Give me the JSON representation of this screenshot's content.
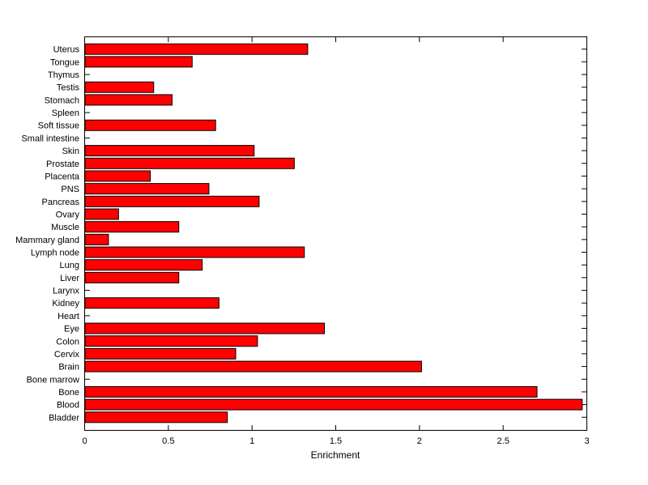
{
  "figure": {
    "background_color": "#ffffff",
    "axis_color": "#000000",
    "text_color": "#000000"
  },
  "chart_data": {
    "type": "bar",
    "orientation": "horizontal",
    "title": "",
    "xlabel": "Enrichment",
    "ylabel": "",
    "xlim": [
      0,
      3
    ],
    "xticks": [
      0,
      0.5,
      1,
      1.5,
      2,
      2.5,
      3
    ],
    "xtick_labels": [
      "0",
      "0.5",
      "1",
      "1.5",
      "2",
      "2.5",
      "3"
    ],
    "grid": false,
    "legend": null,
    "bar_fill_color": "#ff0000",
    "bar_border_color": "#000000",
    "categories": [
      "Uterus",
      "Tongue",
      "Thymus",
      "Testis",
      "Stomach",
      "Spleen",
      "Soft tissue",
      "Small intestine",
      "Skin",
      "Prostate",
      "Placenta",
      "PNS",
      "Pancreas",
      "Ovary",
      "Muscle",
      "Mammary gland",
      "Lymph node",
      "Lung",
      "Liver",
      "Larynx",
      "Kidney",
      "Heart",
      "Eye",
      "Colon",
      "Cervix",
      "Brain",
      "Bone marrow",
      "Bone",
      "Blood",
      "Bladder"
    ],
    "values": [
      1.33,
      0.64,
      0,
      0.41,
      0.52,
      0,
      0.78,
      0,
      1.01,
      1.25,
      0.39,
      0.74,
      1.04,
      0.2,
      0.56,
      0.14,
      1.31,
      0.7,
      0.56,
      0,
      0.8,
      0,
      1.43,
      1.03,
      0.9,
      2.01,
      0,
      2.7,
      2.97,
      0.85
    ]
  }
}
